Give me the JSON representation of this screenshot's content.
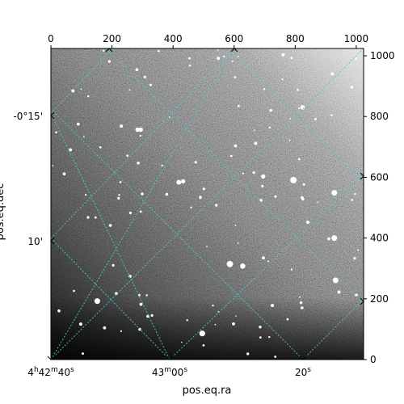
{
  "chart_data": {
    "type": "image",
    "xlabel": "pos.eq.ra",
    "ylabel": "pos.eq.dec",
    "pixel_axes": {
      "x_range": [
        0,
        1024
      ],
      "y_range": [
        0,
        1024
      ],
      "x_ticks": [
        "0",
        "200",
        "400",
        "600",
        "800",
        "1000"
      ],
      "y_ticks": [
        "0",
        "200",
        "400",
        "600",
        "800",
        "1000"
      ]
    },
    "world_axes": {
      "ra_labels": [
        {
          "pre": "4",
          "h": "h",
          "mid": "42",
          "m": "m",
          "sec": "40",
          "s": "s"
        },
        {
          "pre": "",
          "h": "",
          "mid": "43",
          "m": "m",
          "sec": "00",
          "s": "s"
        },
        {
          "pre": "",
          "h": "",
          "mid": "",
          "m": "",
          "sec": "20",
          "s": "s"
        }
      ],
      "dec_labels": [
        "-0°15'",
        "10'"
      ]
    },
    "grid": true,
    "grid_color": "#40d0d0",
    "colormap": "gray"
  }
}
